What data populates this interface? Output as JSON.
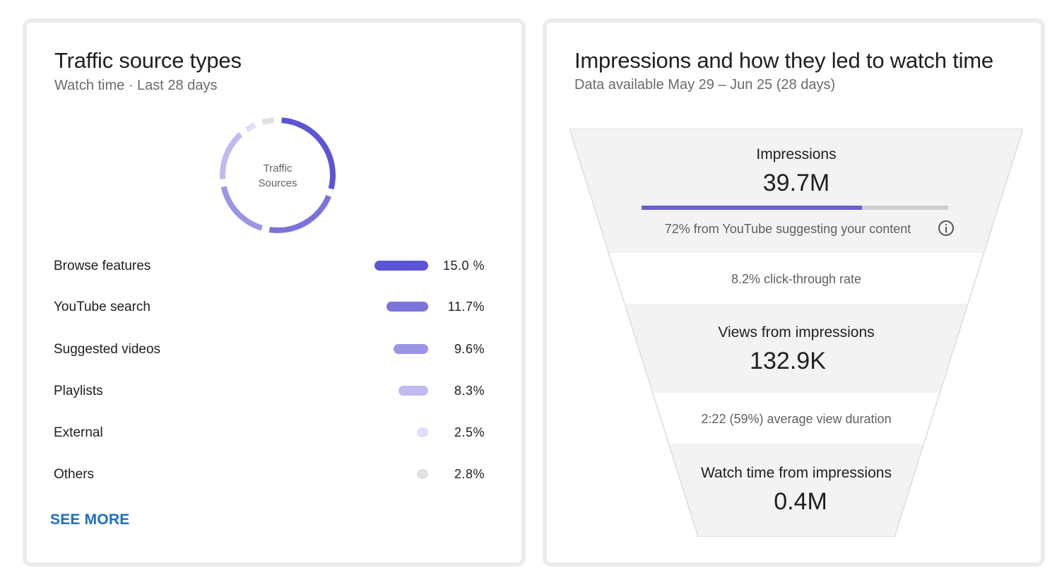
{
  "traffic": {
    "title": "Traffic source types",
    "subtitle": "Watch time · Last 28 days",
    "donut_label_line1": "Traffic",
    "donut_label_line2": "Sources",
    "sources": [
      {
        "label": "Browse features",
        "percent": "15.0 %",
        "value": 15.0,
        "color": "#5b55d6"
      },
      {
        "label": "YouTube search",
        "percent": "11.7%",
        "value": 11.7,
        "color": "#7b73dc"
      },
      {
        "label": "Suggested videos",
        "percent": "9.6%",
        "value": 9.6,
        "color": "#9b95e4"
      },
      {
        "label": "Playlists",
        "percent": "8.3%",
        "value": 8.3,
        "color": "#bfbaef"
      },
      {
        "label": "External",
        "percent": "2.5%",
        "value": 2.5,
        "color": "#e0ddf7"
      },
      {
        "label": "Others",
        "percent": "2.8%",
        "value": 2.8,
        "color": "#e2e2e2"
      }
    ],
    "see_more": "SEE MORE"
  },
  "impressions": {
    "title": "Impressions and how they led to watch time",
    "subtitle": "Data available May 29 – Jun 25 (28 days)",
    "impressions_label": "Impressions",
    "impressions_value": "39.7M",
    "suggested_share": 0.72,
    "suggested_text": "72% from YouTube suggesting your content",
    "ctr_text": "8.2% click-through rate",
    "views_label": "Views from impressions",
    "views_value": "132.9K",
    "avd_text": "2:22 (59%) average view duration",
    "watch_label": "Watch time from impressions",
    "watch_value": "0.4M"
  },
  "colors": {
    "accent": "#5b55d6",
    "link": "#1a6ec6",
    "funnel_band": "#f3f3f3",
    "funnel_gap": "#ffffff"
  },
  "icons": {
    "info": "info-icon"
  }
}
